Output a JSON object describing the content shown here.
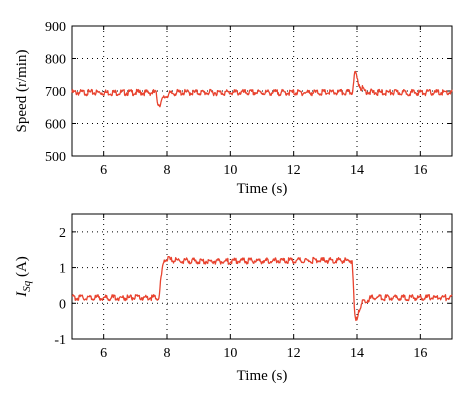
{
  "colors": {
    "trace": "#e8432f",
    "axis": "#000000"
  },
  "chart_data": [
    {
      "type": "line",
      "title": "",
      "xlabel": "Time (s)",
      "ylabel": "Speed (r/min)",
      "xlim": [
        5,
        17
      ],
      "ylim": [
        500,
        900
      ],
      "xticks": [
        6,
        8,
        10,
        12,
        14,
        16
      ],
      "yticks": [
        500,
        600,
        700,
        800,
        900
      ],
      "grid": true,
      "series": [
        {
          "x": [
            5.0,
            7.65,
            7.7,
            7.75,
            7.8,
            7.9,
            8.05,
            8.3,
            9.0,
            10.0,
            11.0,
            12.0,
            13.0,
            13.85,
            13.9,
            13.95,
            14.0,
            14.1,
            14.25,
            14.5,
            15.0,
            16.0,
            17.0
          ],
          "values": [
            700,
            700,
            672,
            662,
            668,
            684,
            695,
            700,
            700,
            700,
            700,
            700,
            700,
            700,
            745,
            762,
            742,
            718,
            705,
            700,
            700,
            700,
            700
          ]
        }
      ]
    },
    {
      "type": "line",
      "title": "",
      "xlabel": "Time (s)",
      "ylabel_main": "I",
      "ylabel_sub": "Sq",
      "ylabel_unit": " (A)",
      "xlim": [
        5,
        17
      ],
      "ylim": [
        -1,
        2.5
      ],
      "xticks": [
        6,
        8,
        10,
        12,
        14,
        16
      ],
      "yticks": [
        -1,
        0,
        1,
        2
      ],
      "grid": true,
      "series": [
        {
          "x": [
            5.0,
            7.75,
            7.8,
            7.9,
            8.0,
            8.1,
            9.0,
            10.0,
            11.0,
            12.0,
            13.0,
            13.85,
            13.88,
            13.92,
            13.97,
            14.05,
            14.2,
            14.5,
            15.0,
            16.0,
            17.0
          ],
          "values": [
            0.2,
            0.2,
            0.65,
            1.25,
            1.3,
            1.25,
            1.22,
            1.22,
            1.23,
            1.24,
            1.24,
            1.24,
            0.6,
            -0.2,
            -0.48,
            -0.15,
            0.1,
            0.2,
            0.2,
            0.2,
            0.2
          ]
        }
      ]
    }
  ]
}
